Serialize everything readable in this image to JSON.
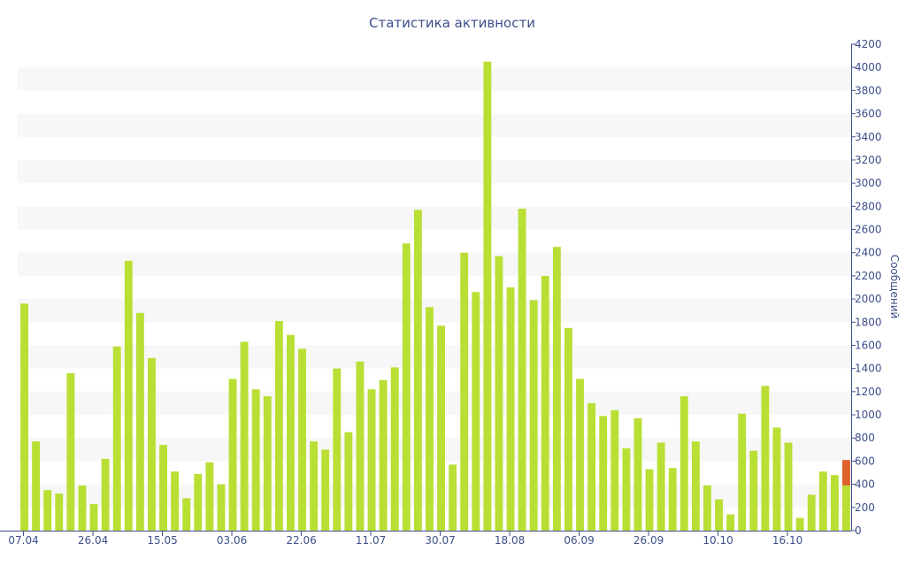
{
  "chart_data": {
    "type": "bar",
    "title": "Статистика активности",
    "ylabel": "Сообщений",
    "xlabel": "",
    "ylim": [
      0,
      4200
    ],
    "y_ticks": [
      0,
      200,
      400,
      600,
      800,
      1000,
      1200,
      1400,
      1600,
      1800,
      2000,
      2200,
      2400,
      2600,
      2800,
      3000,
      3200,
      3400,
      3600,
      3800,
      4000,
      4200
    ],
    "y_axis_side": "right",
    "x_tick_labels": [
      {
        "index": 0,
        "label": "07.04"
      },
      {
        "index": 6,
        "label": "26.04"
      },
      {
        "index": 12,
        "label": "15.05"
      },
      {
        "index": 18,
        "label": "03.06"
      },
      {
        "index": 24,
        "label": "22.06"
      },
      {
        "index": 30,
        "label": "11.07"
      },
      {
        "index": 36,
        "label": "30.07"
      },
      {
        "index": 42,
        "label": "18.08"
      },
      {
        "index": 48,
        "label": "06.09"
      },
      {
        "index": 54,
        "label": "26.09"
      },
      {
        "index": 60,
        "label": "10.10"
      },
      {
        "index": 66,
        "label": "16.10"
      }
    ],
    "grid": "alternating horizontal bands",
    "colors": {
      "bar": "#b9df35",
      "highlight": "#e0622d",
      "band": "#f7f7f7",
      "text": "#3d4f8a",
      "axis": "#3d4f8a"
    },
    "values": [
      1960,
      770,
      350,
      320,
      1360,
      390,
      230,
      620,
      1590,
      2330,
      1880,
      1490,
      740,
      510,
      280,
      490,
      590,
      400,
      1310,
      1630,
      1220,
      1160,
      1810,
      1690,
      1570,
      770,
      700,
      1400,
      850,
      1460,
      1220,
      1300,
      1410,
      2480,
      2770,
      1930,
      1770,
      570,
      2400,
      2060,
      4050,
      2370,
      2100,
      2780,
      1990,
      2200,
      2450,
      1750,
      1310,
      1100,
      990,
      1040,
      710,
      970,
      530,
      760,
      540,
      1160,
      770,
      390,
      270,
      140,
      1010,
      690,
      1250,
      890,
      760,
      110,
      310,
      510,
      480,
      390
    ],
    "last_bar_extra": 220
  }
}
